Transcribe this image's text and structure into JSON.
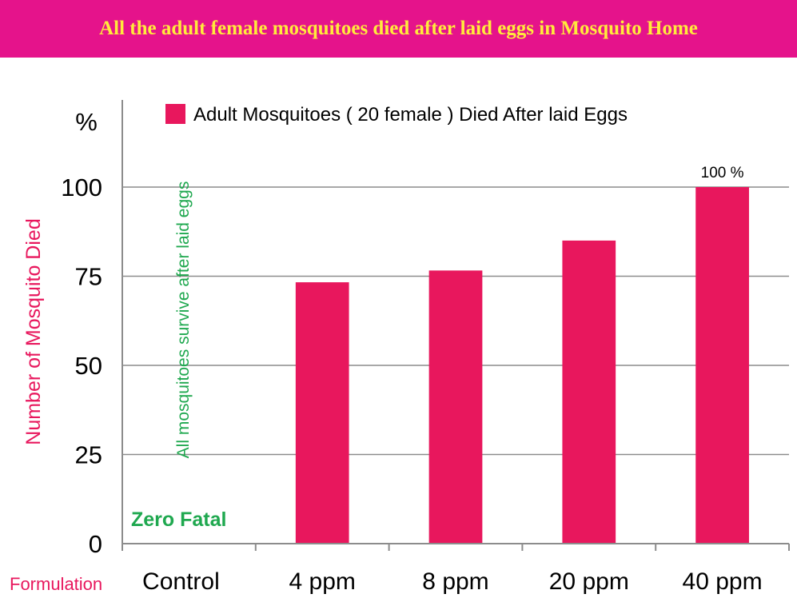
{
  "banner": {
    "title": "All the adult female mosquitoes died after laid eggs in Mosquito Home",
    "background_color": "#e5138b",
    "text_color": "#ffeb3b"
  },
  "chart_data": {
    "type": "bar",
    "title": "",
    "ylabel": "Number of Mosquito Died",
    "xlabel": "Formulation",
    "y_unit_label": "%",
    "categories": [
      "Control",
      "4 ppm",
      "8 ppm",
      "20 ppm",
      "40 ppm"
    ],
    "series": [
      {
        "name": "Adult Mosquitoes ( 20 female ) Died After laid Eggs",
        "color": "#e8175d",
        "values": [
          0,
          73.3,
          76.6,
          85,
          100
        ]
      }
    ],
    "yticks": [
      0,
      25,
      50,
      75,
      100
    ],
    "ylim": [
      0,
      100
    ],
    "grid": true,
    "legend_position": "top-right",
    "data_labels": [
      {
        "category": "40 ppm",
        "text": "100 %"
      }
    ],
    "annotations": {
      "control_note": "All mosquitoes survive after laid eggs",
      "zero_fatal": "Zero Fatal",
      "annotation_color": "#1fa84f"
    }
  }
}
